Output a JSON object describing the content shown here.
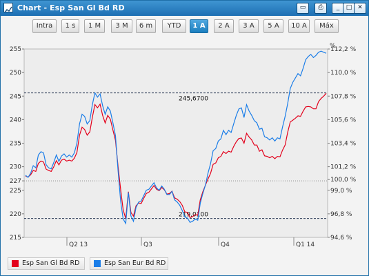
{
  "window": {
    "title": "Chart - Esp San Gl Bd RD",
    "buttons": [
      {
        "name": "restore-window-icon",
        "glyph": "▭"
      },
      {
        "name": "print-icon",
        "glyph": "⎙"
      },
      {
        "name": "minimize-icon",
        "glyph": "_"
      },
      {
        "name": "maximize-icon",
        "glyph": "□"
      },
      {
        "name": "close-icon",
        "glyph": "✕"
      }
    ]
  },
  "toolbar": {
    "ranges": [
      "Intra",
      "1 s",
      "1 M",
      "3 M",
      "6 m",
      "YTD",
      "1 A",
      "2 A",
      "3 A",
      "5 A",
      "10 A",
      "Máx"
    ],
    "active": "1 A"
  },
  "legend": {
    "items": [
      {
        "label": "Esp San Gl Bd RD",
        "color": "#e3001b"
      },
      {
        "label": "Esp San Eur Bd RD",
        "color": "#1a7de8"
      }
    ]
  },
  "chart_data": {
    "type": "line",
    "left_axis": {
      "range": [
        215,
        255
      ],
      "ticks": [
        215,
        220,
        225,
        227,
        230,
        235,
        240,
        245,
        250,
        255
      ]
    },
    "right_axis": {
      "range": [
        94.6,
        112.2
      ],
      "ticks": [
        "94,6 %",
        "96,8 %",
        "99,0 %",
        "100,0 %",
        "101,2 %",
        "103,4 %",
        "105,6 %",
        "107,8 %",
        "110,0 %",
        "112,2 %"
      ],
      "unit": "%"
    },
    "x_labels": [
      "Q2 13",
      "Q3",
      "Q4",
      "Q1 14"
    ],
    "reference_lines": [
      {
        "value": 245.67,
        "label": "245,6700",
        "style": "dashed"
      },
      {
        "value": 219.01,
        "label": "219,0100",
        "style": "dashed"
      },
      {
        "value": 227,
        "style": "dotted"
      }
    ],
    "series": [
      {
        "name": "Esp San Gl Bd RD",
        "color": "#e3001b",
        "values": [
          228.0,
          227.8,
          228.3,
          229.2,
          229.0,
          230.7,
          231.2,
          231.0,
          229.5,
          229.2,
          229.0,
          230.0,
          231.3,
          230.4,
          231.4,
          231.6,
          231.2,
          231.4,
          231.2,
          231.8,
          233.0,
          236.7,
          238.4,
          237.9,
          236.7,
          237.4,
          240.5,
          243.2,
          242.5,
          243.3,
          240.9,
          239.3,
          240.9,
          240.1,
          237.8,
          235.6,
          230.0,
          225.2,
          220.8,
          219.0,
          224.7,
          220.3,
          219.5,
          221.7,
          222.3,
          222.2,
          223.3,
          224.3,
          224.6,
          225.3,
          226.0,
          225.2,
          224.9,
          225.6,
          225.1,
          224.2,
          224.3,
          224.8,
          223.4,
          223.1,
          222.6,
          221.8,
          220.4,
          220.3,
          219.2,
          219.4,
          219.8,
          219.7,
          223.0,
          224.7,
          226.1,
          227.4,
          228.6,
          230.5,
          230.8,
          231.9,
          232.2,
          233.2,
          232.8,
          233.3,
          233.1,
          234.3,
          235.3,
          236.0,
          236.1,
          235.0,
          237.1,
          236.3,
          235.7,
          234.6,
          234.6,
          233.3,
          233.6,
          232.3,
          232.2,
          231.9,
          232.2,
          231.7,
          232.2,
          232.1,
          233.5,
          234.6,
          237.3,
          239.5,
          239.9,
          240.3,
          240.8,
          240.7,
          241.8,
          242.7,
          242.8,
          242.7,
          242.3,
          242.3,
          243.8,
          244.5,
          245.0,
          245.6
        ]
      },
      {
        "name": "Esp San Eur Bd RD",
        "color": "#1a7de8",
        "values": [
          100.4,
          100.2,
          100.6,
          101.3,
          101.1,
          102.3,
          102.6,
          102.5,
          101.4,
          101.1,
          101.0,
          101.6,
          102.3,
          101.7,
          102.2,
          102.4,
          102.1,
          102.3,
          102.1,
          102.5,
          103.4,
          105.2,
          106.1,
          105.9,
          105.2,
          105.5,
          107.0,
          108.1,
          107.7,
          108.0,
          106.9,
          106.1,
          106.8,
          106.4,
          105.3,
          104.1,
          100.8,
          98.0,
          96.3,
          95.9,
          98.8,
          96.6,
          96.1,
          97.4,
          97.9,
          98.0,
          98.5,
          99.0,
          99.1,
          99.4,
          99.7,
          99.2,
          99.0,
          99.4,
          99.1,
          98.6,
          98.6,
          98.9,
          98.1,
          97.9,
          97.6,
          97.1,
          96.5,
          96.4,
          96.0,
          96.1,
          96.3,
          96.2,
          97.8,
          98.7,
          99.5,
          100.6,
          101.5,
          102.7,
          102.9,
          103.6,
          103.8,
          104.6,
          104.2,
          104.6,
          104.4,
          105.2,
          106.0,
          106.6,
          106.7,
          105.8,
          107.0,
          106.4,
          106.0,
          105.5,
          105.3,
          104.7,
          104.8,
          104.0,
          103.9,
          103.7,
          103.9,
          103.6,
          103.9,
          103.8,
          104.9,
          105.9,
          107.1,
          108.5,
          109.1,
          109.5,
          109.9,
          109.7,
          110.4,
          111.2,
          111.5,
          111.7,
          111.4,
          111.6,
          111.9,
          112.0,
          111.9,
          111.8
        ]
      }
    ]
  }
}
